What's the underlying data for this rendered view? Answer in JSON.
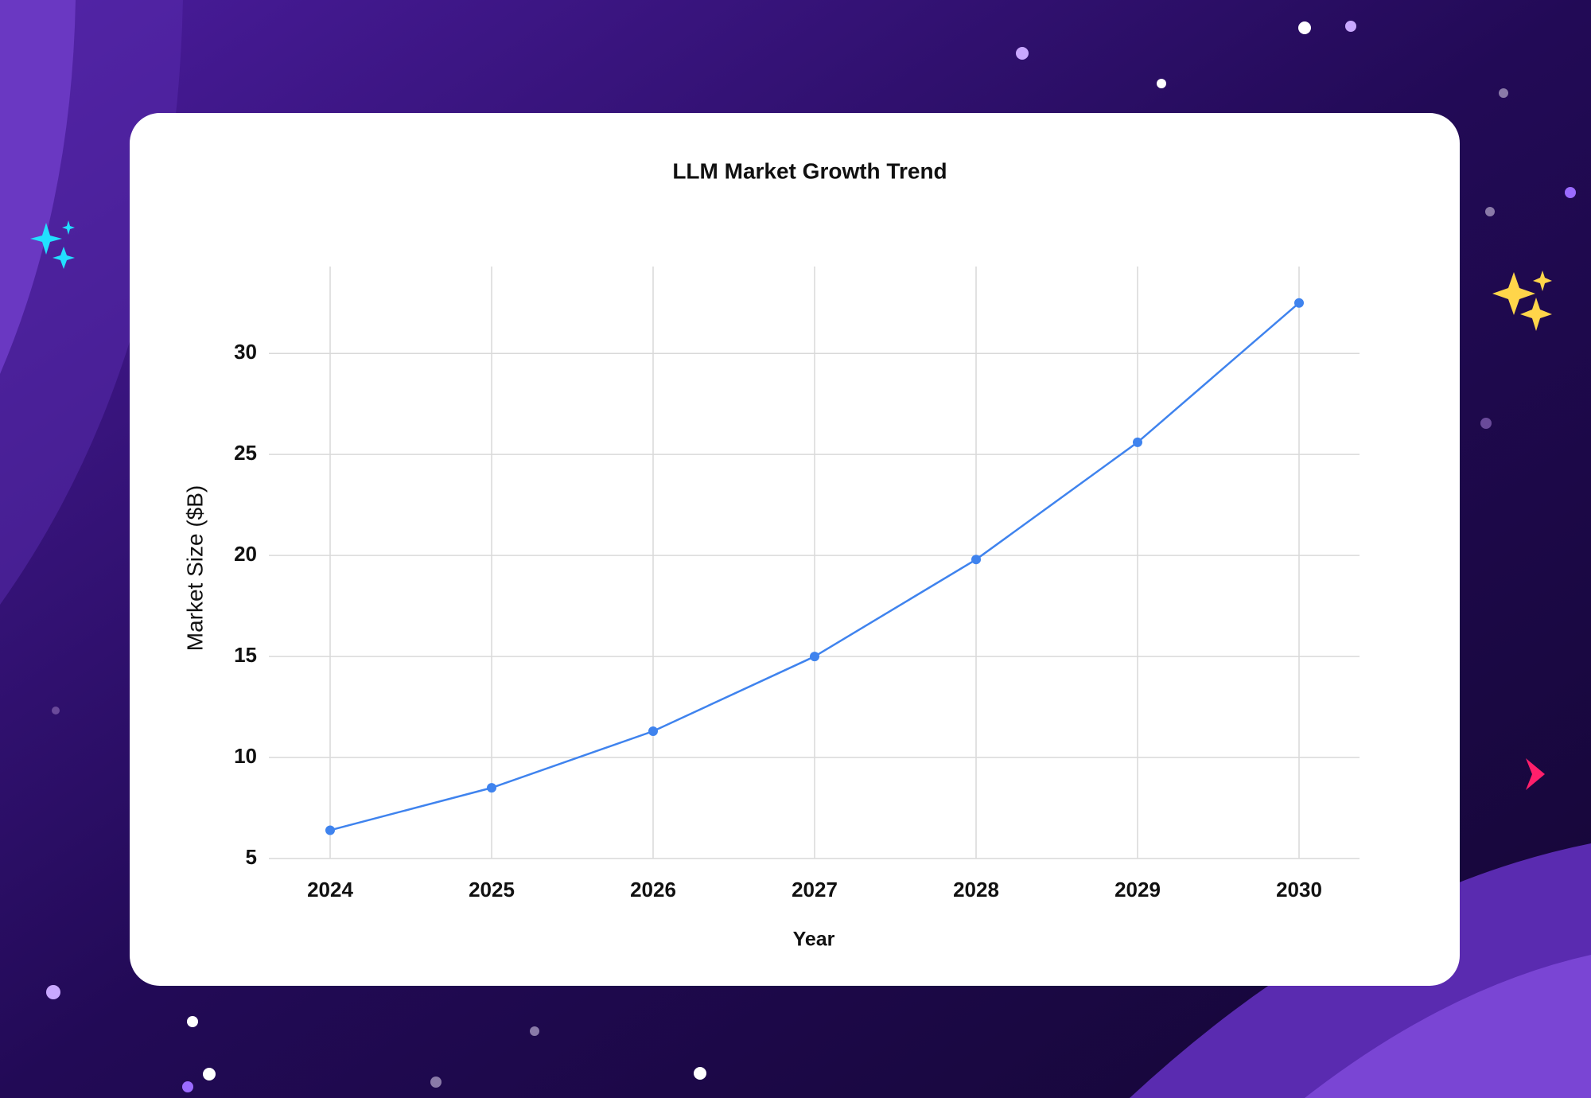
{
  "chart_data": {
    "type": "line",
    "title": "LLM Market Growth Trend",
    "x_label": "Year",
    "y_label": "Market Size ($B)",
    "categories": [
      "2024",
      "2025",
      "2026",
      "2027",
      "2028",
      "2029",
      "2030"
    ],
    "values": [
      6.4,
      8.5,
      11.3,
      15.0,
      19.8,
      25.6,
      32.5
    ],
    "color": "#3f83ee",
    "ylim": [
      5,
      34.3
    ],
    "yticks": [
      5,
      10,
      15,
      20,
      25,
      30
    ],
    "grid": true
  }
}
